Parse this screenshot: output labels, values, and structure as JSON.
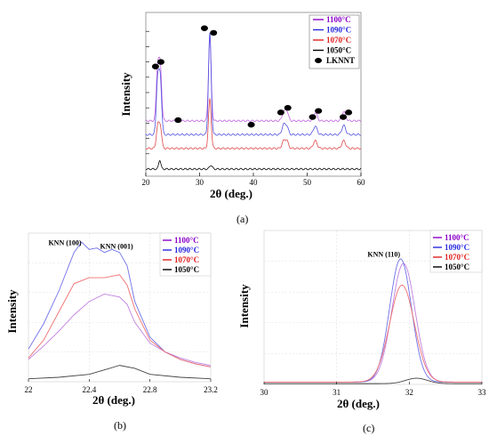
{
  "chart_data": [
    {
      "id": "a",
      "type": "line",
      "caption": "(a)",
      "xlabel": "2θ (deg.)",
      "ylabel": "Intensity",
      "xlim": [
        20,
        60
      ],
      "xticks": [
        20,
        30,
        40,
        50,
        60
      ],
      "legend_position": "top-right",
      "legend": [
        {
          "label": "1100°C",
          "color": "#8b00c8"
        },
        {
          "label": "1090°C",
          "color": "#2828e0"
        },
        {
          "label": "1070°C",
          "color": "#e02020"
        },
        {
          "label": "1050°C",
          "color": "#000000"
        },
        {
          "label": "LKNNT",
          "color": "#000000",
          "marker": "filled-circle"
        }
      ],
      "series": [
        {
          "name": "1100°C",
          "color": "#c060e0",
          "offset": 3.15,
          "peaks": [
            [
              22.2,
              3.4,
              0.25
            ],
            [
              22.7,
              3.4,
              0.25
            ],
            [
              31.9,
              5.5,
              0.25
            ],
            [
              45.6,
              0.5,
              0.3
            ],
            [
              46.2,
              0.65,
              0.3
            ],
            [
              51.5,
              0.55,
              0.35
            ],
            [
              56.8,
              0.6,
              0.35
            ]
          ]
        },
        {
          "name": "1090°C",
          "color": "#5050e0",
          "offset": 2.25,
          "peaks": [
            [
              22.2,
              3.5,
              0.25
            ],
            [
              22.7,
              3.5,
              0.25
            ],
            [
              31.9,
              6.6,
              0.25
            ],
            [
              45.6,
              0.6,
              0.3
            ],
            [
              46.2,
              0.55,
              0.3
            ],
            [
              51.5,
              0.55,
              0.35
            ],
            [
              56.8,
              0.6,
              0.35
            ]
          ]
        },
        {
          "name": "1070°C",
          "color": "#e04848",
          "offset": 1.35,
          "peaks": [
            [
              22.2,
              1.4,
              0.25
            ],
            [
              22.7,
              1.4,
              0.25
            ],
            [
              31.9,
              3.2,
              0.25
            ],
            [
              45.6,
              0.45,
              0.3
            ],
            [
              46.2,
              0.5,
              0.3
            ],
            [
              51.5,
              0.5,
              0.35
            ],
            [
              56.8,
              0.5,
              0.35
            ]
          ]
        },
        {
          "name": "1050°C",
          "color": "#000000",
          "offset": 0.0,
          "peaks": [
            [
              22.6,
              0.6,
              0.2
            ],
            [
              32.1,
              0.25,
              0.25
            ]
          ]
        }
      ],
      "markers_x": [
        [
          21.8,
          6.7
        ],
        [
          22.8,
          7.0
        ],
        [
          26.0,
          3.2
        ],
        [
          30.9,
          9.2
        ],
        [
          32.6,
          8.9
        ],
        [
          39.6,
          2.9
        ],
        [
          45.1,
          3.7
        ],
        [
          46.4,
          4.0
        ],
        [
          51.0,
          3.4
        ],
        [
          52.1,
          3.8
        ],
        [
          56.7,
          3.4
        ],
        [
          57.7,
          3.7
        ]
      ]
    },
    {
      "id": "b",
      "type": "line",
      "caption": "(b)",
      "xlabel": "2θ (deg.)",
      "ylabel": "Intensity",
      "xlim": [
        22,
        23.2
      ],
      "xticks": [
        22,
        22.4,
        22.8,
        23.2
      ],
      "legend_position": "top-right",
      "annotations": [
        {
          "text": "KNN (100)",
          "x": 22.24,
          "y": 9.2
        },
        {
          "text": "KNN (001)",
          "x": 22.58,
          "y": 8.95
        }
      ],
      "legend": [
        {
          "label": "1100°C",
          "color": "#8b00c8"
        },
        {
          "label": "1090°C",
          "color": "#2828e0"
        },
        {
          "label": "1070°C",
          "color": "#e02020"
        },
        {
          "label": "1050°C",
          "color": "#000000"
        }
      ],
      "series": [
        {
          "name": "1100°C",
          "color": "#c080e0",
          "points": [
            [
              22.0,
              1.5
            ],
            [
              22.1,
              2.4
            ],
            [
              22.2,
              3.4
            ],
            [
              22.3,
              4.5
            ],
            [
              22.4,
              5.4
            ],
            [
              22.5,
              5.9
            ],
            [
              22.6,
              5.7
            ],
            [
              22.65,
              5.2
            ],
            [
              22.7,
              4.0
            ],
            [
              22.8,
              2.6
            ],
            [
              22.9,
              2.0
            ],
            [
              23.0,
              1.6
            ],
            [
              23.1,
              1.3
            ],
            [
              23.2,
              1.1
            ]
          ]
        },
        {
          "name": "1090°C",
          "color": "#7070e8",
          "points": [
            [
              22.0,
              2.2
            ],
            [
              22.1,
              3.9
            ],
            [
              22.2,
              6.1
            ],
            [
              22.3,
              8.7
            ],
            [
              22.35,
              9.4
            ],
            [
              22.4,
              8.9
            ],
            [
              22.45,
              9.0
            ],
            [
              22.5,
              8.7
            ],
            [
              22.55,
              8.9
            ],
            [
              22.6,
              8.7
            ],
            [
              22.65,
              7.8
            ],
            [
              22.7,
              5.4
            ],
            [
              22.8,
              3.0
            ],
            [
              22.9,
              2.0
            ],
            [
              23.0,
              1.5
            ],
            [
              23.1,
              1.2
            ],
            [
              23.2,
              1.0
            ]
          ]
        },
        {
          "name": "1070°C",
          "color": "#f07070",
          "points": [
            [
              22.0,
              1.6
            ],
            [
              22.1,
              2.8
            ],
            [
              22.2,
              4.7
            ],
            [
              22.3,
              6.6
            ],
            [
              22.4,
              7.0
            ],
            [
              22.5,
              7.0
            ],
            [
              22.6,
              7.2
            ],
            [
              22.65,
              6.5
            ],
            [
              22.7,
              4.9
            ],
            [
              22.8,
              2.8
            ],
            [
              22.9,
              2.0
            ],
            [
              23.0,
              1.5
            ],
            [
              23.1,
              1.2
            ],
            [
              23.2,
              1.0
            ]
          ]
        },
        {
          "name": "1050°C",
          "color": "#444444",
          "points": [
            [
              22.0,
              0.2
            ],
            [
              22.2,
              0.3
            ],
            [
              22.4,
              0.5
            ],
            [
              22.5,
              0.8
            ],
            [
              22.6,
              1.1
            ],
            [
              22.7,
              0.9
            ],
            [
              22.8,
              0.5
            ],
            [
              23.0,
              0.3
            ],
            [
              23.2,
              0.2
            ]
          ]
        }
      ]
    },
    {
      "id": "c",
      "type": "line",
      "caption": "(c)",
      "xlabel": "2θ (deg.)",
      "ylabel": "Intensity",
      "xlim": [
        30,
        33
      ],
      "xticks": [
        30,
        31,
        32,
        33
      ],
      "legend_position": "top-right",
      "annotations": [
        {
          "text": "KNN (110)",
          "x": 31.65,
          "y": 8.3
        }
      ],
      "legend": [
        {
          "label": "1100°C",
          "color": "#8b00c8"
        },
        {
          "label": "1090°C",
          "color": "#2828e0"
        },
        {
          "label": "1070°C",
          "color": "#e02020"
        },
        {
          "label": "1050°C",
          "color": "#000000"
        }
      ],
      "series": [
        {
          "name": "1100°C",
          "color": "#c080e0",
          "peak": [
            31.92,
            7.7,
            0.16
          ],
          "base": 0.15
        },
        {
          "name": "1090°C",
          "color": "#7070e8",
          "peak": [
            31.88,
            8.0,
            0.15
          ],
          "base": 0.15
        },
        {
          "name": "1070°C",
          "color": "#f07070",
          "peak": [
            31.9,
            6.3,
            0.17
          ],
          "base": 0.15
        },
        {
          "name": "1050°C",
          "color": "#444444",
          "peak": [
            32.1,
            0.35,
            0.15
          ],
          "base": 0.05
        }
      ]
    }
  ]
}
